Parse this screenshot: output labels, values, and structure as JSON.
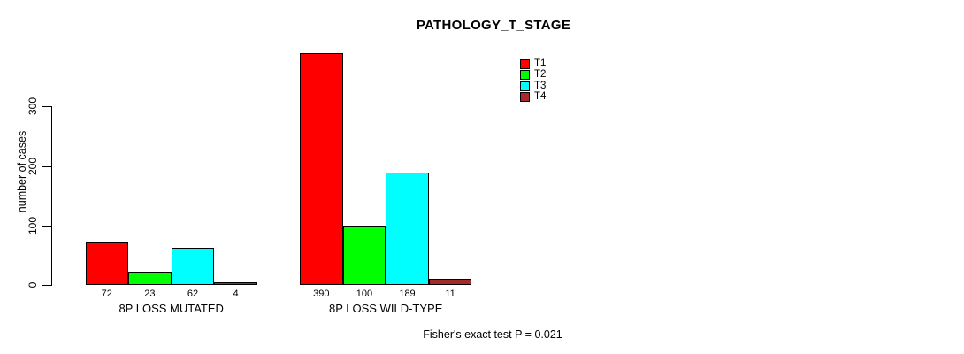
{
  "chart_data": {
    "type": "bar",
    "title": "PATHOLOGY_T_STAGE",
    "ylabel": "number of cases",
    "xlabel": "",
    "yticks": [
      0,
      100,
      200,
      300
    ],
    "ylim": [
      0,
      390
    ],
    "grid": false,
    "legend_position": "top-right",
    "categories": [
      "8P LOSS MUTATED",
      "8P LOSS WILD-TYPE"
    ],
    "series": [
      {
        "name": "T1",
        "color": "#ff0000",
        "values": [
          72,
          390
        ]
      },
      {
        "name": "T2",
        "color": "#00ff00",
        "values": [
          23,
          100
        ]
      },
      {
        "name": "T3",
        "color": "#00ffff",
        "values": [
          62,
          189
        ]
      },
      {
        "name": "T4",
        "color": "#a52a2a",
        "values": [
          4,
          11
        ]
      }
    ],
    "bar_value_labels": [
      [
        72,
        23,
        62,
        4
      ],
      [
        390,
        100,
        189,
        11
      ]
    ],
    "annotation": "Fisher's exact test P = 0.021"
  }
}
